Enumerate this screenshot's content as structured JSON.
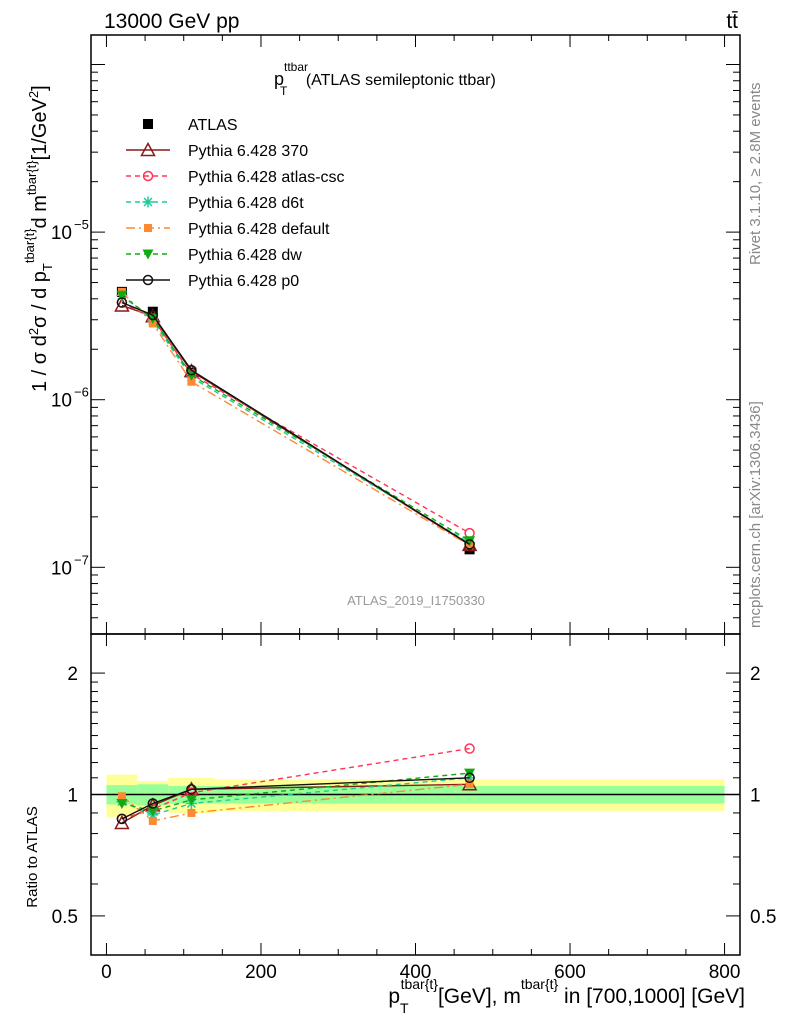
{
  "header": {
    "energy_label": "13000 GeV pp",
    "process_label": "tt̄",
    "rivet_label": "Rivet 3.1.10, ≥ 2.8M events",
    "mcplots_label": "mcplots.cern.ch [arXiv:1306.3436]",
    "analysis_id": "ATLAS_2019_I1750330"
  },
  "main_panel": {
    "title_main": "p",
    "title_sup": "ttbar",
    "title_sub": "T",
    "title_rest": " (ATLAS semileptonic ttbar)",
    "ylabel": "1 / σ d²σ / d p_T^{tbar{t}} d m^{tbar{t}} [1/GeV²]",
    "yticks": [
      {
        "value": 1e-05,
        "label": "10",
        "exp": "−5"
      },
      {
        "value": 1e-06,
        "label": "10",
        "exp": "−6"
      },
      {
        "value": 1e-07,
        "label": "10",
        "exp": "−7"
      }
    ]
  },
  "ratio_panel": {
    "ylabel": "Ratio to ATLAS",
    "yticks": [
      {
        "value": 2,
        "label": "2"
      },
      {
        "value": 1,
        "label": "1"
      },
      {
        "value": 0.5,
        "label": "0.5"
      }
    ]
  },
  "xaxis": {
    "ticks": [
      {
        "value": 0,
        "label": "0"
      },
      {
        "value": 200,
        "label": "200"
      },
      {
        "value": 400,
        "label": "400"
      },
      {
        "value": 600,
        "label": "600"
      },
      {
        "value": 800,
        "label": "800"
      }
    ],
    "label": "p_T^{tbar{t}} [GeV], m^{tbar{t}} in [700,1000] [GeV]"
  },
  "chart_data": {
    "type": "line",
    "title": "p_T^ttbar (ATLAS semileptonic ttbar)",
    "xlabel": "p_T^{tbar{t}} [GeV], m^{tbar{t}} in [700,1000] [GeV]",
    "ylabel": "1 / σ d²σ / d p_T^{tbar{t}} d m^{tbar{t}} [1/GeV²]",
    "xlim": [
      -20,
      820
    ],
    "ylim": [
      4e-08,
      0.00015
    ],
    "yscale": "log",
    "ratio_ylim": [
      0.4,
      2.5
    ],
    "ratio_yscale": "log",
    "legend_position": "top-left",
    "x": [
      20,
      60,
      110,
      470
    ],
    "bins": [
      [
        0,
        40
      ],
      [
        40,
        80
      ],
      [
        80,
        140
      ],
      [
        140,
        800
      ]
    ],
    "data": {
      "name": "ATLAS",
      "values": [
        4.4e-06,
        3.35e-06,
        1.45e-06,
        1.28e-07
      ],
      "band_inner": [
        0.055,
        0.06,
        0.05,
        0.05
      ],
      "band_outer": [
        0.12,
        0.08,
        0.1,
        0.09
      ]
    },
    "series": [
      {
        "name": "Pythia 6.428 370",
        "color": "#8b1a1a",
        "dash": "",
        "marker": "triangle-open",
        "values": [
          3.65e-06,
          3.15e-06,
          1.48e-06,
          1.36e-07
        ],
        "ratio": [
          0.85,
          0.94,
          1.03,
          1.06
        ]
      },
      {
        "name": "Pythia 6.428 atlas-csc",
        "color": "#ff3355",
        "dash": "5,4",
        "marker": "circle-open",
        "values": [
          3.8e-06,
          3.05e-06,
          1.42e-06,
          1.6e-07
        ],
        "ratio": [
          0.87,
          0.92,
          1.01,
          1.3
        ]
      },
      {
        "name": "Pythia 6.428 d6t",
        "color": "#1ecc99",
        "dash": "5,4",
        "marker": "star",
        "values": [
          4.2e-06,
          2.95e-06,
          1.36e-06,
          1.4e-07
        ],
        "ratio": [
          0.96,
          0.89,
          0.95,
          1.1
        ]
      },
      {
        "name": "Pythia 6.428 default",
        "color": "#ff8833",
        "dash": "9,4,2,4",
        "marker": "square-filled",
        "values": [
          4.4e-06,
          2.85e-06,
          1.28e-06,
          1.35e-07
        ],
        "ratio": [
          0.99,
          0.86,
          0.9,
          1.06
        ]
      },
      {
        "name": "Pythia 6.428 dw",
        "color": "#11aa11",
        "dash": "5,4",
        "marker": "triangle-down-filled",
        "values": [
          4.2e-06,
          3.05e-06,
          1.4e-06,
          1.44e-07
        ],
        "ratio": [
          0.95,
          0.91,
          0.97,
          1.13
        ]
      },
      {
        "name": "Pythia 6.428 p0",
        "color": "#111111",
        "dash": "",
        "marker": "circle-open",
        "values": [
          3.8e-06,
          3.2e-06,
          1.5e-06,
          1.37e-07
        ],
        "ratio": [
          0.87,
          0.95,
          1.03,
          1.1
        ]
      }
    ]
  }
}
